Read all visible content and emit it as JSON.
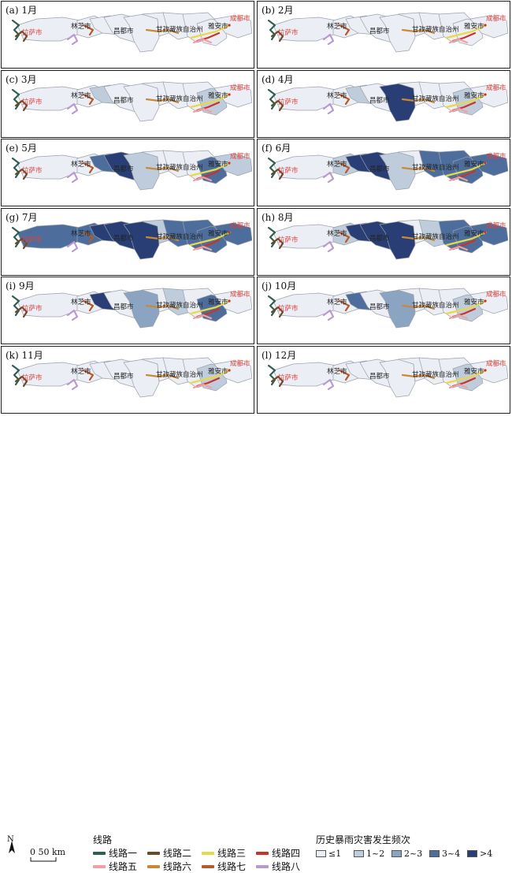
{
  "panels": [
    {
      "label": "(a) 1月",
      "fills": [
        "c1",
        "c1",
        "c1",
        "c1",
        "c1",
        "c1",
        "c1",
        "c1",
        "c1",
        "c1"
      ]
    },
    {
      "label": "(b) 2月",
      "fills": [
        "c1",
        "c1",
        "c1",
        "c1",
        "c1",
        "c1",
        "c1",
        "c1",
        "c1",
        "c1"
      ]
    },
    {
      "label": "(c) 3月",
      "fills": [
        "c1",
        "c1",
        "c2",
        "c1",
        "c1",
        "c1",
        "c1",
        "c1",
        "c2",
        "c1"
      ]
    },
    {
      "label": "(d) 4月",
      "fills": [
        "c1",
        "c1",
        "c2",
        "c1",
        "c5",
        "c1",
        "c1",
        "c1",
        "c2",
        "c1"
      ]
    },
    {
      "label": "(e) 5月",
      "fills": [
        "c1",
        "c1",
        "c4",
        "c5",
        "c2",
        "c1",
        "c1",
        "c1",
        "c4",
        "c2"
      ]
    },
    {
      "label": "(f) 6月",
      "fills": [
        "c1",
        "c2",
        "c5",
        "c5",
        "c2",
        "c1",
        "c4",
        "c4",
        "c4",
        "c4"
      ]
    },
    {
      "label": "(g) 7月",
      "fills": [
        "c4",
        "c4",
        "c5",
        "c5",
        "c5",
        "c2",
        "c4",
        "c4",
        "c4",
        "c4"
      ]
    },
    {
      "label": "(h) 8月",
      "fills": [
        "c1",
        "c2",
        "c5",
        "c5",
        "c5",
        "c1",
        "c2",
        "c4",
        "c4",
        "c4"
      ]
    },
    {
      "label": "(i) 9月",
      "fills": [
        "c1",
        "c1",
        "c5",
        "c1",
        "c3",
        "c1",
        "c2",
        "c1",
        "c4",
        "c1"
      ]
    },
    {
      "label": "(j) 10月",
      "fills": [
        "c1",
        "c1",
        "c4",
        "c1",
        "c3",
        "c1",
        "c1",
        "c1",
        "c2",
        "c1"
      ]
    },
    {
      "label": "(k) 11月",
      "fills": [
        "c1",
        "c1",
        "c1",
        "c1",
        "c1",
        "c1",
        "c1",
        "c1",
        "c2",
        "c1"
      ]
    },
    {
      "label": "(l) 12月",
      "fills": [
        "c1",
        "c1",
        "c1",
        "c1",
        "c1",
        "c1",
        "c1",
        "c1",
        "c2",
        "c1"
      ]
    }
  ],
  "cities": {
    "lasa": "拉萨市",
    "linzhi": "林芝市",
    "changdu": "昌都市",
    "ganzi": "甘孜藏族自治州",
    "yaan": "雅安市",
    "chengdu": "成都市"
  },
  "legend": {
    "north": "N",
    "scale": "0  50 km",
    "routes_title": "线路",
    "routes": [
      {
        "name": "线路一",
        "color": "#2f5f4f"
      },
      {
        "name": "线路二",
        "color": "#6b4a2b"
      },
      {
        "name": "线路三",
        "color": "#e8d84a"
      },
      {
        "name": "线路四",
        "color": "#c8332c"
      },
      {
        "name": "线路五",
        "color": "#f0a0a0"
      },
      {
        "name": "线路六",
        "color": "#c88a3a"
      },
      {
        "name": "线路七",
        "color": "#b55a2a"
      },
      {
        "name": "线路八",
        "color": "#b99ad0"
      }
    ],
    "freq_title": "历史暴雨灾害发生频次",
    "freq": [
      {
        "label": "≤1",
        "color": "#eceef6"
      },
      {
        "label": "1~2",
        "color": "#bfccdb"
      },
      {
        "label": "2~3",
        "color": "#8aa4c2"
      },
      {
        "label": "3~4",
        "color": "#4d6e9c"
      },
      {
        "label": ">4",
        "color": "#283e74"
      }
    ]
  }
}
